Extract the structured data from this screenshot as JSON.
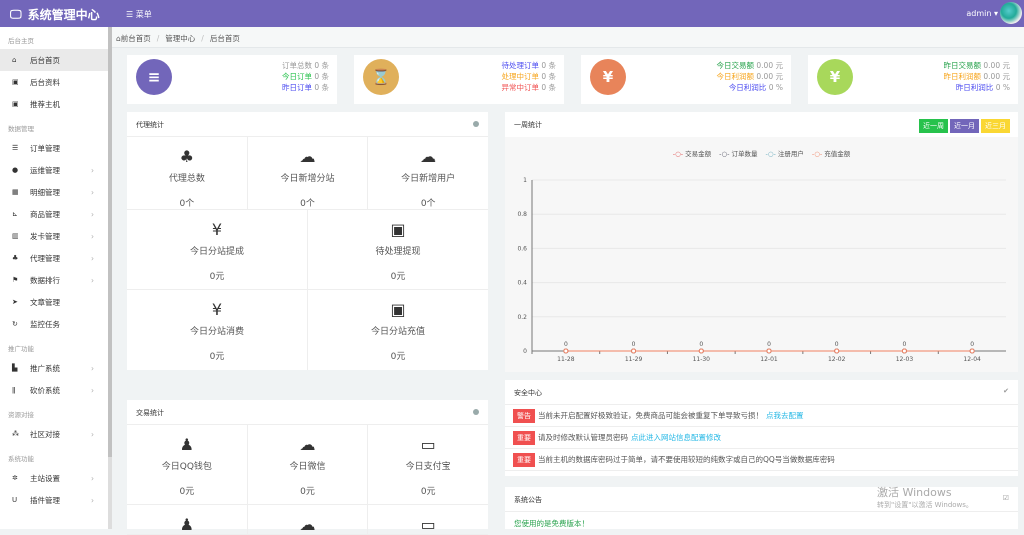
{
  "header": {
    "title": "系统管理中心",
    "menu": "菜单",
    "user": "admin"
  },
  "sidebar": [
    {
      "section": "后台主页",
      "items": [
        {
          "icon": "home-icon",
          "glyph": "⌂",
          "label": "后台首页",
          "active": true
        },
        {
          "icon": "id-card-icon",
          "glyph": "▣",
          "label": "后台资料"
        },
        {
          "icon": "id-card-icon",
          "glyph": "▣",
          "label": "推荐主机"
        }
      ]
    },
    {
      "section": "数据管理",
      "items": [
        {
          "icon": "list-icon",
          "glyph": "☰",
          "label": "订单管理"
        },
        {
          "icon": "comments-icon",
          "glyph": "●",
          "label": "运维管理",
          "sub": true
        },
        {
          "icon": "calendar-icon",
          "glyph": "▦",
          "label": "明细管理",
          "sub": true
        },
        {
          "icon": "cart-icon",
          "glyph": "⊾",
          "label": "商品管理",
          "sub": true
        },
        {
          "icon": "grid-icon",
          "glyph": "▥",
          "label": "发卡管理",
          "sub": true
        },
        {
          "icon": "sitemap-icon",
          "glyph": "♣",
          "label": "代理管理",
          "sub": true
        },
        {
          "icon": "flag-icon",
          "glyph": "⚑",
          "label": "数据排行",
          "sub": true
        },
        {
          "icon": "send-icon",
          "glyph": "➤",
          "label": "文章管理"
        },
        {
          "icon": "refresh-icon",
          "glyph": "↻",
          "label": "监控任务"
        }
      ]
    },
    {
      "section": "推广功能",
      "items": [
        {
          "icon": "industry-icon",
          "glyph": "▙",
          "label": "推广系统",
          "sub": true
        },
        {
          "icon": "cutlery-icon",
          "glyph": "ǁ",
          "label": "砍价系统",
          "sub": true
        }
      ]
    },
    {
      "section": "资源对接",
      "items": [
        {
          "icon": "cubes-icon",
          "glyph": "⁂",
          "label": "社区对接",
          "sub": true
        }
      ]
    },
    {
      "section": "系统功能",
      "items": [
        {
          "icon": "gear-icon",
          "glyph": "✲",
          "label": "主站设置",
          "sub": true
        },
        {
          "icon": "magnet-icon",
          "glyph": "U",
          "label": "插件管理",
          "sub": true
        }
      ]
    }
  ],
  "breadcrumb": [
    "前台首页",
    "管理中心",
    "后台首页"
  ],
  "cards": [
    {
      "icon": "list-ol-icon",
      "glyph": "≡",
      "color": "#7266ba",
      "lines": [
        {
          "label": "订单总数",
          "value": "0 条",
          "color": "#999"
        },
        {
          "label": "今日订单",
          "value": "0 条",
          "color": "#27c24c"
        },
        {
          "label": "昨日订单",
          "value": "0 条",
          "color": "#4b4bf0"
        }
      ]
    },
    {
      "icon": "hourglass-icon",
      "glyph": "⌛",
      "color": "#e0b05b",
      "lines": [
        {
          "label": "待处理订单",
          "value": "0 条",
          "color": "#4b4bf0"
        },
        {
          "label": "处理中订单",
          "value": "0 条",
          "color": "#f7a51c"
        },
        {
          "label": "异常中订单",
          "value": "0 条",
          "color": "#f05050"
        }
      ]
    },
    {
      "icon": "yen-icon",
      "glyph": "¥",
      "color": "#e8845a",
      "lines": [
        {
          "label": "今日交易额",
          "value": "0.00 元",
          "color": "#27a24c"
        },
        {
          "label": "今日利润额",
          "value": "0.00 元",
          "color": "#f7a51c"
        },
        {
          "label": "今日利润比",
          "value": "0 %",
          "color": "#4b4bf0"
        }
      ]
    },
    {
      "icon": "yen-icon",
      "glyph": "¥",
      "color": "#a8d85b",
      "lines": [
        {
          "label": "昨日交易额",
          "value": "0.00 元",
          "color": "#27a24c"
        },
        {
          "label": "昨日利润额",
          "value": "0.00 元",
          "color": "#f7a51c"
        },
        {
          "label": "昨日利润比",
          "value": "0 %",
          "color": "#4b4bf0"
        }
      ]
    }
  ],
  "agent": {
    "title": "代理统计",
    "row1": [
      {
        "icon": "sitemap-icon",
        "glyph": "♣",
        "label": "代理总数",
        "value": "0个"
      },
      {
        "icon": "cloud-icon",
        "glyph": "☁",
        "label": "今日新增分站",
        "value": "0个"
      },
      {
        "icon": "cloud-icon",
        "glyph": "☁",
        "label": "今日新增用户",
        "value": "0个"
      }
    ],
    "row2": [
      {
        "icon": "yen-icon",
        "glyph": "¥",
        "label": "今日分站提成",
        "value": "0元"
      },
      {
        "icon": "money-icon",
        "glyph": "▣",
        "label": "待处理提现",
        "value": "0元"
      }
    ],
    "row3": [
      {
        "icon": "yen-icon",
        "glyph": "¥",
        "label": "今日分站消费",
        "value": "0元"
      },
      {
        "icon": "money-icon",
        "glyph": "▣",
        "label": "今日分站充值",
        "value": "0元"
      }
    ]
  },
  "trade": {
    "title": "交易统计",
    "row1": [
      {
        "icon": "qq-icon",
        "glyph": "♟",
        "label": "今日QQ钱包",
        "value": "0元"
      },
      {
        "icon": "wechat-icon",
        "glyph": "☁",
        "label": "今日微信",
        "value": "0元"
      },
      {
        "icon": "credit-card-icon",
        "glyph": "▭",
        "label": "今日支付宝",
        "value": "0元"
      }
    ]
  },
  "weekly": {
    "title": "一周统计",
    "buttons": [
      {
        "label": "近一周",
        "color": "#27c24c"
      },
      {
        "label": "近一月",
        "color": "#7266ba"
      },
      {
        "label": "近三月",
        "color": "#fad733"
      }
    ]
  },
  "chart_data": {
    "type": "line",
    "categories": [
      "11-28",
      "11-29",
      "11-30",
      "12-01",
      "12-02",
      "12-03",
      "12-04"
    ],
    "series": [
      {
        "name": "交易金额",
        "values": [
          0,
          0,
          0,
          0,
          0,
          0,
          0
        ],
        "color": "#e05050"
      },
      {
        "name": "订单数量",
        "values": [
          0,
          0,
          0,
          0,
          0,
          0,
          0
        ],
        "color": "#556"
      },
      {
        "name": "注册用户",
        "values": [
          0,
          0,
          0,
          0,
          0,
          0,
          0
        ],
        "color": "#6ab"
      },
      {
        "name": "充值金额",
        "values": [
          0,
          0,
          0,
          0,
          0,
          0,
          0
        ],
        "color": "#f08060"
      }
    ],
    "ylim": [
      0,
      1
    ],
    "yticks": [
      "0",
      "0.2",
      "0.4",
      "0.6",
      "0.8",
      "1"
    ],
    "grid": true,
    "legend": "top"
  },
  "security": {
    "title": "安全中心",
    "alerts": [
      {
        "tag": "警告",
        "text": "当前未开启配置好极致验证，免费商品可能会被重复下单导致亏损！",
        "link": "点我去配置"
      },
      {
        "tag": "重要",
        "text": "请及时修改默认管理员密码",
        "link": "点此进入网站信息配置修改"
      },
      {
        "tag": "重要",
        "text": "当前主机的数据库密码过于简单，请不要使用较短的纯数字或自己的QQ号当做数据库密码",
        "link": ""
      }
    ]
  },
  "notice": {
    "title": "系统公告",
    "text": "您使用的是免费版本！"
  },
  "watermark": {
    "line1": "激活 Windows",
    "line2": "转到\"设置\"以激活 Windows。"
  }
}
